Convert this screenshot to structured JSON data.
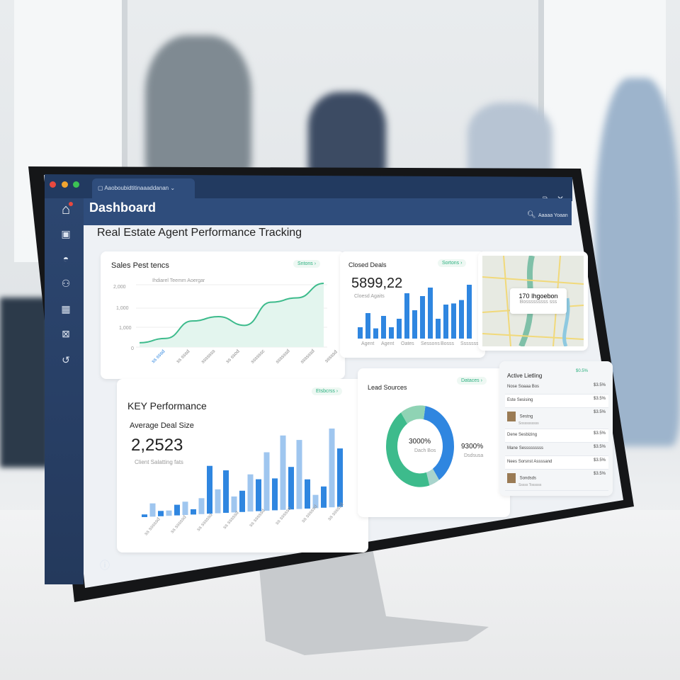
{
  "window": {
    "tab_label": "Aaoboubidtitinaaaddanan",
    "header_title": "Dashboard",
    "search_label": "Aaaaa Yoaan"
  },
  "page_title": "Real Estate Agent Performance Tracking",
  "sales": {
    "title": "Sales Pest tencs",
    "action": "Sntons",
    "legend": "Ihdiarel Teemm Aoergar",
    "y_ticks": [
      "2,000",
      "1,000",
      "1,000",
      "0"
    ],
    "x_labels": [
      "ss sssd",
      "ss sssd",
      "sssssss",
      "ss ssod",
      "ssssssc",
      "ssssssd",
      "ssssssd",
      "sssssd"
    ]
  },
  "closed_deals": {
    "title": "Closed Deals",
    "action": "Sortons",
    "value": "5899,22",
    "subtitle": "Cloesd Agaits",
    "x_labels": [
      "Agent",
      "Agent",
      "Oates",
      "Sessons",
      "Bosss",
      "Sssssss"
    ]
  },
  "map": {
    "label": "170 Ihgoebon",
    "sublabel": "Bosssssssss sss"
  },
  "key_performance": {
    "title": "KEY Performance",
    "action": "Etsbcrss",
    "metric_label": "Average Deal Size",
    "value": "2,2523",
    "subtitle": "Client Salatting fats",
    "x_labels": [
      "ss sssssd",
      "ss sssssd",
      "ss sssssd",
      "ss sssssd",
      "ss sssssd",
      "ss sssssd",
      "ss sssssd",
      "ss sssssd"
    ]
  },
  "lead_sources": {
    "title": "Lead Sources",
    "action": "Dataces",
    "center_value": "3000%",
    "center_label": "Dach Bos",
    "side_value": "9300%",
    "side_label": "Dsdsusa"
  },
  "active_listing": {
    "title": "Active Lietling",
    "action": "$0.5%",
    "rows": [
      {
        "tag": "Nose",
        "name": "Soaaa Bos",
        "value": "$3.5%"
      },
      {
        "tag": "Este",
        "name": "Sesising",
        "value": "$3.5%"
      },
      {
        "tag": "",
        "name": "Sestng",
        "sub": "Sosssssssss",
        "value": "$3.5%",
        "thumb": true
      },
      {
        "tag": "Dene",
        "name": "Sesbizing",
        "value": "$3.5%"
      },
      {
        "tag": "Mane",
        "name": "Sesssssssss",
        "value": "$3.5%"
      },
      {
        "tag": "Nees",
        "name": "Sorsnst Assssand",
        "value": "$3.5%"
      },
      {
        "tag": "",
        "name": "Sondsds",
        "sub": "Sssss Tosssss",
        "value": "$3.5%",
        "thumb": true
      }
    ]
  },
  "colors": {
    "navy": "#2d4a78",
    "blue": "#2f86e0",
    "light_blue": "#9fc6ef",
    "green": "#3dbb8c",
    "light_green": "#8fd3b4"
  },
  "chart_data": [
    {
      "type": "area",
      "title": "Sales Pest tencs",
      "y_ticks": [
        "2,000",
        "1,000",
        "1,000",
        "0"
      ],
      "values": [
        150,
        300,
        900,
        1050,
        750,
        1550,
        1700,
        2200
      ]
    },
    {
      "type": "bar",
      "title": "Closed Deals",
      "values": [
        20,
        45,
        18,
        40,
        20,
        35,
        80,
        50,
        75,
        90,
        35,
        60,
        62,
        68,
        95
      ]
    },
    {
      "type": "bar",
      "title": "Average Deal Size",
      "values": [
        5,
        25,
        10,
        10,
        20,
        25,
        10,
        30,
        90,
        45,
        80,
        30,
        40,
        70,
        60,
        110,
        60,
        140,
        80,
        130,
        55,
        25,
        40,
        160,
        110
      ],
      "series_colors": "alternating dark/light blue"
    },
    {
      "type": "pie",
      "title": "Lead Sources",
      "slices": [
        {
          "label": "blue",
          "value": 38,
          "color": "#2f86e0"
        },
        {
          "label": "pale",
          "value": 5,
          "color": "#a8d4cc"
        },
        {
          "label": "green",
          "value": 45,
          "color": "#3dbb8c"
        },
        {
          "label": "light green",
          "value": 12,
          "color": "#8fd3b4"
        }
      ]
    }
  ]
}
